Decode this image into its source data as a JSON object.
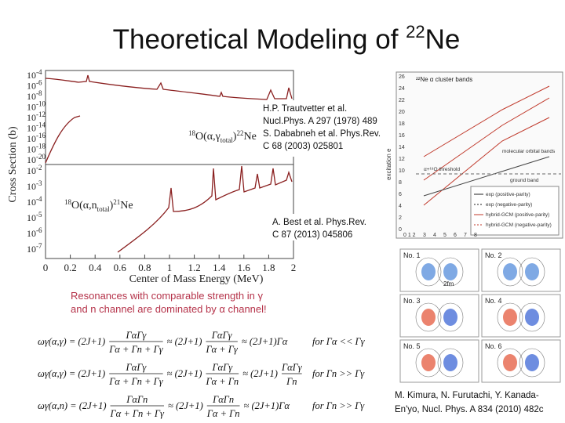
{
  "title": {
    "main": "Theoretical Modeling of ",
    "sup": "22",
    "tail": "Ne"
  },
  "plot": {
    "y_axis_title": "Cross Section (b)",
    "x_axis_title": "Center of Mass Energy (MeV)",
    "x_ticks": [
      "0",
      "0.2",
      "0.4",
      "0.6",
      "0.8",
      "1",
      "1.2",
      "1.4",
      "1.6",
      "1.8",
      "2"
    ],
    "tick_base": "10",
    "top_exponents": [
      "-4",
      "-6",
      "-8",
      "-10",
      "-12",
      "-14",
      "-16",
      "-18",
      "-20"
    ],
    "bottom_exponents": [
      "-2",
      "-3",
      "-4",
      "-5",
      "-6",
      "-7"
    ],
    "top_reaction": [
      "18",
      "O(α,γ",
      "total",
      ")",
      "22",
      "Ne"
    ],
    "bottom_reaction": [
      "18",
      "O(α,n",
      "total",
      ")",
      "21",
      "Ne"
    ]
  },
  "references": {
    "top": [
      "H.P. Trautvetter et al.",
      "Nucl.Phys. A 297 (1978) 489",
      "S. Dababneh et al. Phys.Rev.",
      "C 68 (2003) 025801"
    ],
    "middle": [
      "A. Best et al. Phys.Rev.",
      "C 87 (2013) 045806"
    ],
    "bottom": [
      "M. Kimura, N. Furutachi, Y. Kanada-",
      "En'yo, Nucl. Phys. A 834 (2010) 482c"
    ]
  },
  "note": [
    "Resonances with comparable strength in γ",
    "and n channel are dominated by α channel!"
  ],
  "equations": [
    [
      "ωγ(α,γ) = (2J+1)",
      {
        "num": "ΓαΓγ",
        "den": "Γα + Γn + Γγ"
      },
      "≈ (2J+1)",
      {
        "num": "ΓαΓγ",
        "den": "Γα + Γγ"
      },
      "≈ (2J+1)Γα",
      "for Γα << Γγ"
    ],
    [
      "ωγ(α,γ) = (2J+1)",
      {
        "num": "ΓαΓγ",
        "den": "Γα + Γn + Γγ"
      },
      "≈ (2J+1)",
      {
        "num": "ΓαΓγ",
        "den": "Γα + Γn"
      },
      "≈ (2J+1)",
      {
        "num": "ΓαΓγ",
        "den": "Γn"
      },
      "for Γn >> Γγ"
    ],
    [
      "ωγ(α,n) = (2J+1)",
      {
        "num": "ΓαΓn",
        "den": "Γα + Γn + Γγ"
      },
      "≈ (2J+1)",
      {
        "num": "ΓαΓn",
        "den": "Γα + Γn"
      },
      "≈ (2J+1)Γα",
      "for Γn >> Γγ"
    ]
  ],
  "bands_figure": {
    "title": "²²Ne α cluster bands",
    "y_axis_title": "excitation e",
    "y_ticks": [
      "26",
      "24",
      "22",
      "20",
      "18",
      "16",
      "14",
      "12",
      "10",
      "8",
      "6",
      "4",
      "2",
      "0"
    ],
    "x_ticks": [
      "0 1 2",
      "3",
      "4",
      "5",
      "6",
      "7",
      "8"
    ],
    "labels": [
      "molecular orbital bands",
      "ground band",
      "α+¹⁸O threshold"
    ],
    "legend": [
      "exp (positive-parity)",
      "exp (negative-parity)",
      "hybrid-GCM (positive-parity)",
      "hybrid-GCM (negative-parity)"
    ]
  },
  "density_panels": {
    "labels": [
      "No. 1",
      "No. 2",
      "No. 3",
      "No. 4",
      "No. 5",
      "No. 6"
    ],
    "scale": "2fm"
  }
}
